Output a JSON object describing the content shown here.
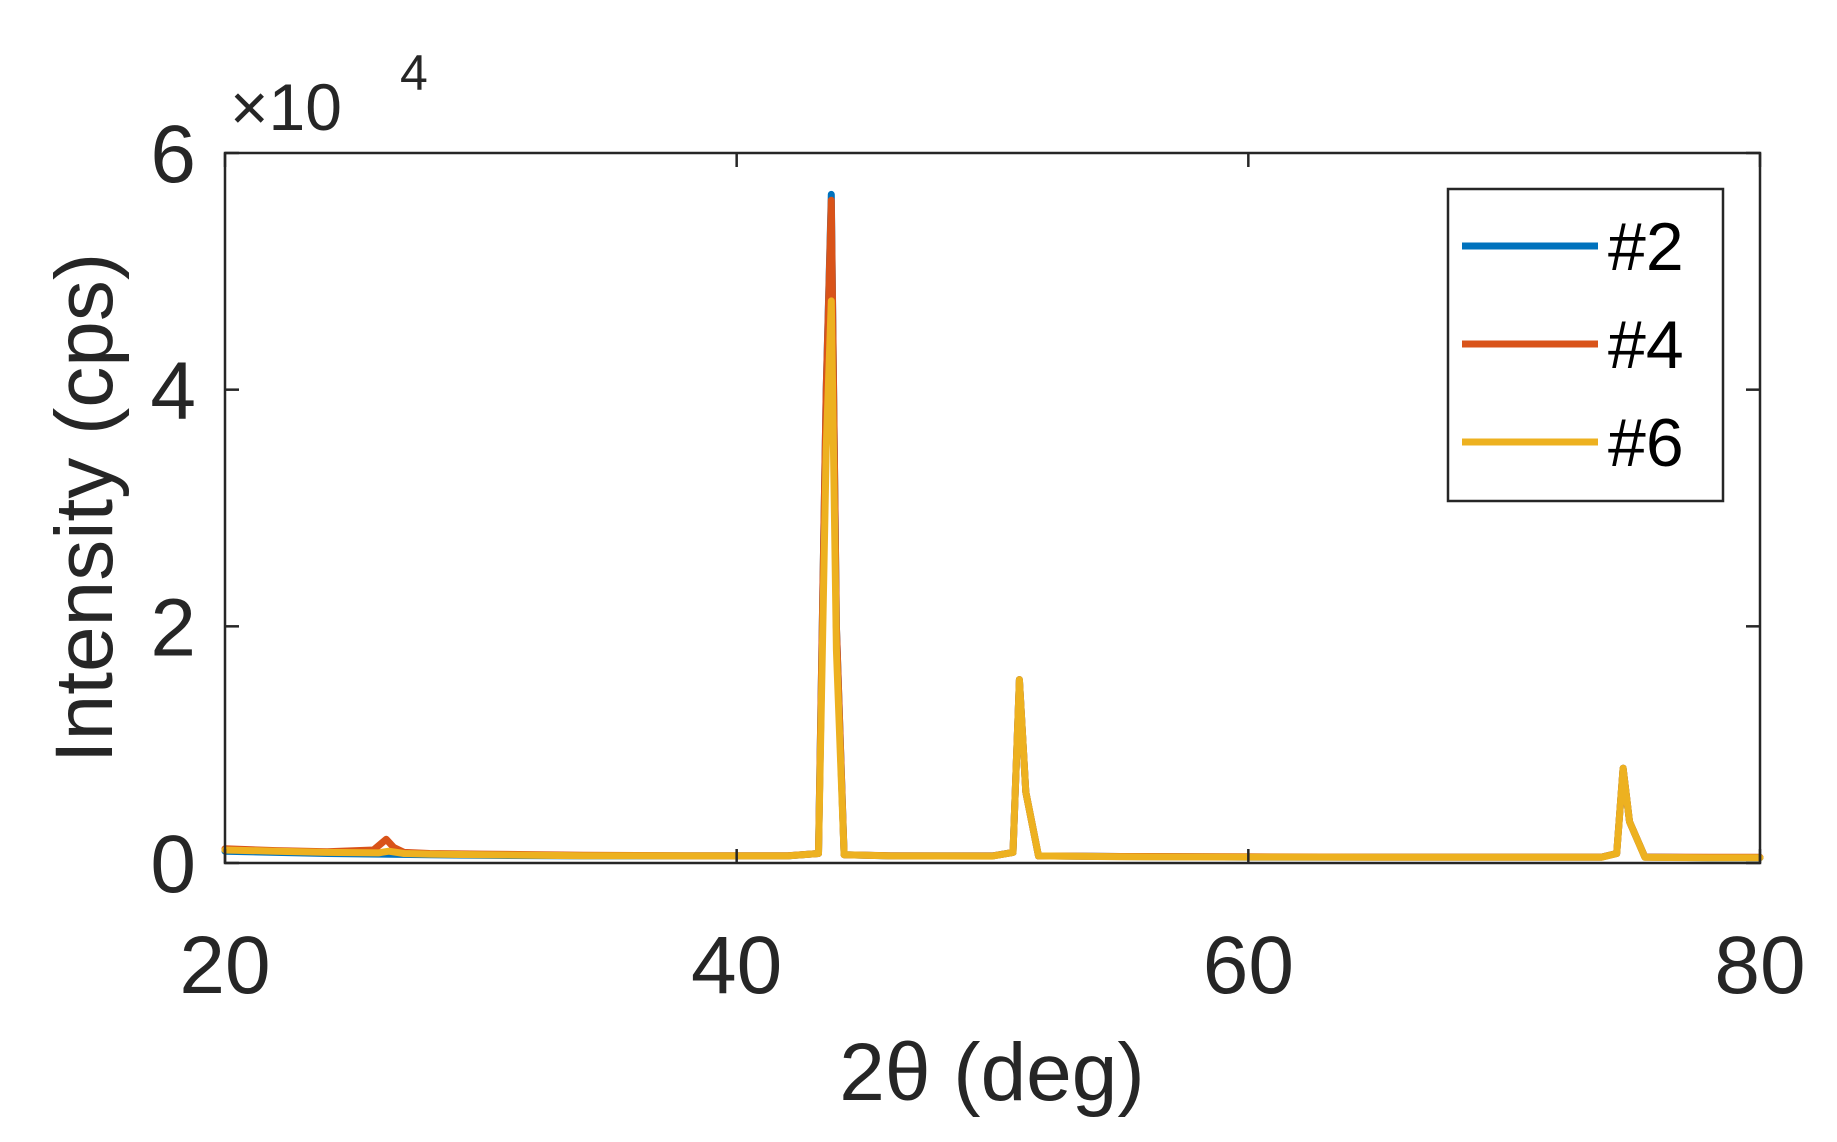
{
  "chart_data": {
    "type": "line",
    "title": "",
    "xlabel": "2θ (deg)",
    "ylabel": "Intensity (cps)",
    "xlim": [
      20,
      80
    ],
    "ylim": [
      0,
      60000
    ],
    "xticks": [
      20,
      40,
      60,
      80
    ],
    "yticks": [
      0,
      2,
      4,
      6
    ],
    "y_exponent": {
      "base": "×10",
      "power": "4"
    },
    "grid": false,
    "legend_position": "top-right",
    "series": [
      {
        "name": "#2",
        "color": "#0072BD",
        "x": [
          20,
          22,
          24,
          26,
          28,
          30,
          34,
          38,
          42,
          43.2,
          43.5,
          43.7,
          43.9,
          44.2,
          46,
          50,
          50.8,
          51.05,
          51.3,
          51.8,
          55,
          60,
          65,
          70,
          73.8,
          74.4,
          74.65,
          74.9,
          75.5,
          78,
          80
        ],
        "y": [
          1000,
          900,
          800,
          750,
          700,
          650,
          600,
          600,
          600,
          800,
          40000,
          56500,
          20000,
          700,
          600,
          600,
          900,
          15500,
          6000,
          600,
          550,
          500,
          500,
          500,
          500,
          800,
          8000,
          3500,
          500,
          450,
          450
        ]
      },
      {
        "name": "#4",
        "color": "#D95319",
        "x": [
          20,
          22,
          24,
          25.8,
          26.3,
          26.6,
          27,
          28,
          30,
          34,
          38,
          42,
          43.2,
          43.5,
          43.7,
          43.9,
          44.2,
          46,
          50,
          50.8,
          51.05,
          51.3,
          51.8,
          55,
          60,
          65,
          70,
          73.8,
          74.4,
          74.65,
          74.9,
          75.5,
          78,
          80
        ],
        "y": [
          1200,
          1050,
          950,
          1100,
          2000,
          1300,
          900,
          800,
          750,
          650,
          620,
          620,
          800,
          40000,
          56000,
          20000,
          700,
          620,
          600,
          900,
          15500,
          6000,
          600,
          550,
          520,
          500,
          500,
          500,
          800,
          8000,
          3500,
          500,
          480,
          480
        ]
      },
      {
        "name": "#6",
        "color": "#EDB120",
        "x": [
          20,
          22,
          24,
          26,
          26.4,
          27,
          28,
          30,
          34,
          38,
          42,
          43.2,
          43.5,
          43.7,
          43.9,
          44.2,
          46,
          50,
          50.8,
          51.05,
          51.3,
          51.8,
          55,
          60,
          65,
          70,
          73.8,
          74.4,
          74.65,
          74.9,
          75.5,
          78,
          80
        ],
        "y": [
          1100,
          1000,
          900,
          850,
          1000,
          800,
          750,
          700,
          620,
          600,
          600,
          800,
          35000,
          47500,
          18000,
          700,
          600,
          580,
          900,
          15500,
          6000,
          600,
          520,
          500,
          480,
          480,
          480,
          800,
          8000,
          3500,
          480,
          450,
          450
        ]
      }
    ]
  }
}
